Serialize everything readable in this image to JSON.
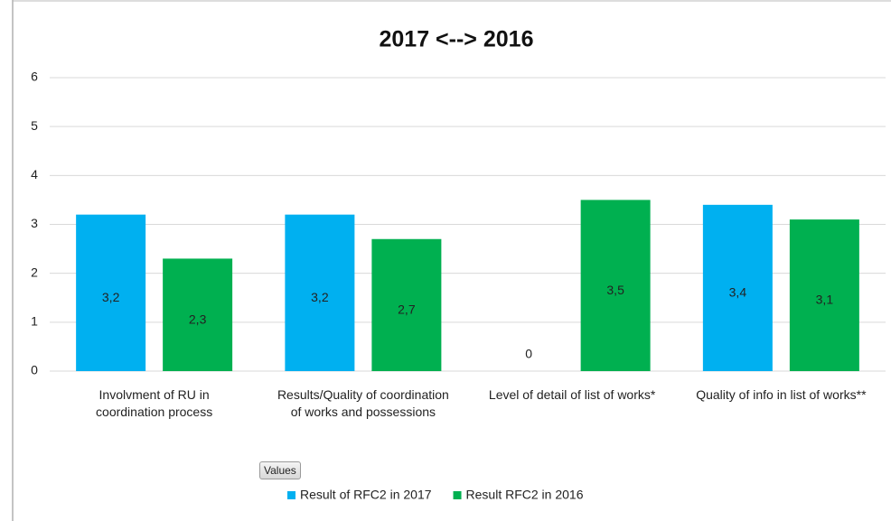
{
  "chart_data": {
    "type": "bar",
    "title": "2017 <--> 2016",
    "categories": [
      "Involvment of RU in coordination process",
      "Results/Quality of coordination of works and possessions",
      "Level of detail of list of works*",
      "Quality of info in list of works**"
    ],
    "series": [
      {
        "name": "Result of RFC2 in 2017",
        "color": "#00b0f0",
        "values": [
          3.2,
          3.2,
          0,
          3.4
        ],
        "value_labels": [
          "3,2",
          "3,2",
          "0",
          "3,4"
        ]
      },
      {
        "name": "Result RFC2 in 2016",
        "color": "#00b050",
        "values": [
          2.3,
          2.7,
          3.5,
          3.1
        ],
        "value_labels": [
          "2,3",
          "2,7",
          "3,5",
          "3,1"
        ]
      }
    ],
    "ylim": [
      0,
      6
    ],
    "yticks": [
      0,
      1,
      2,
      3,
      4,
      5,
      6
    ],
    "grid": true,
    "legend": "bottom",
    "field_button": "Values"
  }
}
